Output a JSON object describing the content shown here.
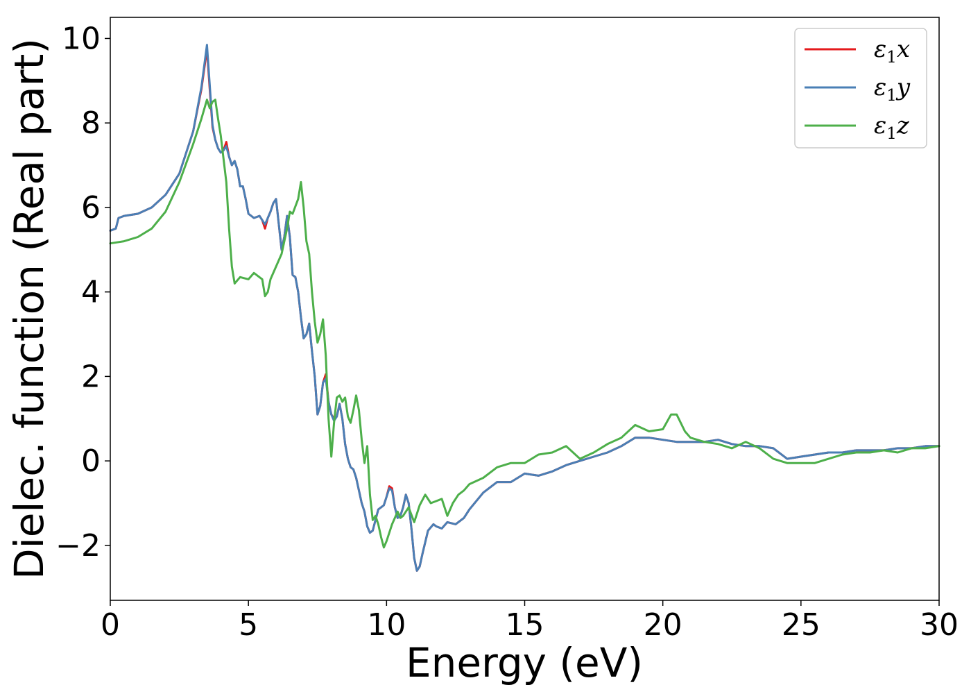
{
  "chart_data": {
    "type": "line",
    "title": "",
    "xlabel": "Energy (eV)",
    "ylabel": "Dielec. function (Real part)",
    "xlim": [
      0,
      30
    ],
    "ylim": [
      -3.3,
      10.5
    ],
    "xticks": [
      0,
      5,
      10,
      15,
      20,
      25,
      30
    ],
    "yticks": [
      -2,
      0,
      2,
      4,
      6,
      8,
      10
    ],
    "xtick_labels": [
      "0",
      "5",
      "10",
      "15",
      "20",
      "25",
      "30"
    ],
    "ytick_labels": [
      "−2",
      "0",
      "2",
      "4",
      "6",
      "8",
      "10"
    ],
    "grid": false,
    "legend_position": "top-right",
    "series": [
      {
        "name": "ε₁x",
        "legend_base": "ε",
        "legend_sub": "1",
        "legend_var": "x",
        "color": "#e41a1c",
        "x": [
          0,
          0.2,
          0.3,
          0.5,
          1.0,
          1.5,
          2.0,
          2.5,
          3.0,
          3.3,
          3.5,
          3.6,
          3.7,
          3.8,
          3.9,
          4.0,
          4.1,
          4.2,
          4.3,
          4.4,
          4.5,
          4.6,
          4.7,
          4.8,
          4.9,
          5.0,
          5.2,
          5.4,
          5.5,
          5.6,
          5.7,
          5.8,
          5.9,
          6.0,
          6.1,
          6.2,
          6.3,
          6.4,
          6.5,
          6.6,
          6.7,
          6.8,
          6.9,
          7.0,
          7.1,
          7.2,
          7.3,
          7.4,
          7.5,
          7.6,
          7.7,
          7.8,
          7.9,
          8.0,
          8.1,
          8.2,
          8.3,
          8.4,
          8.5,
          8.6,
          8.7,
          8.8,
          8.9,
          9.0,
          9.1,
          9.2,
          9.3,
          9.4,
          9.5,
          9.6,
          9.7,
          9.8,
          9.9,
          10.0,
          10.1,
          10.2,
          10.3,
          10.4,
          10.5,
          10.6,
          10.7,
          10.8,
          10.9,
          11.0,
          11.1,
          11.2,
          11.3,
          11.5,
          11.7,
          11.8,
          12.0,
          12.2,
          12.5,
          12.8,
          13.0,
          13.5,
          14.0,
          14.5,
          15.0,
          15.5,
          16.0,
          16.5,
          17.0,
          17.5,
          18.0,
          18.5,
          19.0,
          19.5,
          20.0,
          20.5,
          21.0,
          21.5,
          22.0,
          22.5,
          23.0,
          23.5,
          24.0,
          24.5,
          25.0,
          25.5,
          26.0,
          26.5,
          27.0,
          27.5,
          28.0,
          28.5,
          29.0,
          29.5,
          30.0
        ],
        "y": [
          5.45,
          5.5,
          5.75,
          5.8,
          5.85,
          6.0,
          6.3,
          6.8,
          7.8,
          8.8,
          9.75,
          8.8,
          7.9,
          7.6,
          7.4,
          7.3,
          7.35,
          7.55,
          7.2,
          7.0,
          7.1,
          6.9,
          6.5,
          6.5,
          6.2,
          5.85,
          5.75,
          5.8,
          5.7,
          5.5,
          5.75,
          5.9,
          6.1,
          6.2,
          5.6,
          5.0,
          5.3,
          5.8,
          5.3,
          4.4,
          4.35,
          4.0,
          3.4,
          2.9,
          3.0,
          3.25,
          2.6,
          2.0,
          1.1,
          1.3,
          1.85,
          2.05,
          1.4,
          1.1,
          1.0,
          1.05,
          1.35,
          1.0,
          0.4,
          0.05,
          -0.15,
          -0.2,
          -0.4,
          -0.7,
          -1.0,
          -1.2,
          -1.55,
          -1.7,
          -1.65,
          -1.4,
          -1.15,
          -1.1,
          -1.05,
          -0.85,
          -0.6,
          -0.65,
          -1.1,
          -1.35,
          -1.3,
          -1.1,
          -0.8,
          -1.0,
          -1.6,
          -2.3,
          -2.6,
          -2.5,
          -2.2,
          -1.65,
          -1.5,
          -1.55,
          -1.6,
          -1.45,
          -1.5,
          -1.35,
          -1.15,
          -0.75,
          -0.5,
          -0.5,
          -0.3,
          -0.35,
          -0.25,
          -0.1,
          0.0,
          0.1,
          0.2,
          0.35,
          0.55,
          0.55,
          0.5,
          0.45,
          0.45,
          0.45,
          0.5,
          0.4,
          0.35,
          0.35,
          0.3,
          0.05,
          0.1,
          0.15,
          0.2,
          0.2,
          0.25,
          0.25,
          0.25,
          0.3,
          0.3,
          0.35,
          0.35
        ]
      },
      {
        "name": "ε₁y",
        "legend_base": "ε",
        "legend_sub": "1",
        "legend_var": "y",
        "color": "#4a7fb5",
        "x": [
          0,
          0.2,
          0.3,
          0.5,
          1.0,
          1.5,
          2.0,
          2.5,
          3.0,
          3.3,
          3.5,
          3.6,
          3.7,
          3.8,
          3.9,
          4.0,
          4.1,
          4.2,
          4.3,
          4.4,
          4.5,
          4.6,
          4.7,
          4.8,
          4.9,
          5.0,
          5.2,
          5.4,
          5.5,
          5.6,
          5.7,
          5.8,
          5.9,
          6.0,
          6.1,
          6.2,
          6.3,
          6.4,
          6.5,
          6.6,
          6.7,
          6.8,
          6.9,
          7.0,
          7.1,
          7.2,
          7.3,
          7.4,
          7.5,
          7.6,
          7.7,
          7.8,
          7.9,
          8.0,
          8.1,
          8.2,
          8.3,
          8.4,
          8.5,
          8.6,
          8.7,
          8.8,
          8.9,
          9.0,
          9.1,
          9.2,
          9.3,
          9.4,
          9.5,
          9.6,
          9.7,
          9.8,
          9.9,
          10.0,
          10.1,
          10.2,
          10.3,
          10.4,
          10.5,
          10.6,
          10.7,
          10.8,
          10.9,
          11.0,
          11.1,
          11.2,
          11.3,
          11.5,
          11.7,
          11.8,
          12.0,
          12.2,
          12.5,
          12.8,
          13.0,
          13.5,
          14.0,
          14.5,
          15.0,
          15.5,
          16.0,
          16.5,
          17.0,
          17.5,
          18.0,
          18.5,
          19.0,
          19.5,
          20.0,
          20.5,
          21.0,
          21.5,
          22.0,
          22.5,
          23.0,
          23.5,
          24.0,
          24.5,
          25.0,
          25.5,
          26.0,
          26.5,
          27.0,
          27.5,
          28.0,
          28.5,
          29.0,
          29.5,
          30.0
        ],
        "y": [
          5.45,
          5.5,
          5.75,
          5.8,
          5.85,
          6.0,
          6.3,
          6.8,
          7.8,
          8.85,
          9.85,
          8.9,
          7.95,
          7.6,
          7.4,
          7.3,
          7.35,
          7.45,
          7.2,
          7.0,
          7.1,
          6.9,
          6.5,
          6.5,
          6.2,
          5.85,
          5.75,
          5.8,
          5.7,
          5.6,
          5.75,
          5.9,
          6.1,
          6.2,
          5.6,
          5.0,
          5.3,
          5.8,
          5.3,
          4.4,
          4.35,
          4.0,
          3.4,
          2.9,
          3.0,
          3.25,
          2.6,
          2.0,
          1.1,
          1.3,
          1.85,
          1.95,
          1.4,
          1.1,
          0.95,
          1.05,
          1.35,
          1.0,
          0.4,
          0.05,
          -0.15,
          -0.2,
          -0.4,
          -0.7,
          -1.0,
          -1.2,
          -1.55,
          -1.7,
          -1.65,
          -1.4,
          -1.15,
          -1.1,
          -1.05,
          -0.85,
          -0.65,
          -0.7,
          -1.1,
          -1.35,
          -1.3,
          -1.1,
          -0.8,
          -1.0,
          -1.6,
          -2.3,
          -2.6,
          -2.5,
          -2.2,
          -1.65,
          -1.5,
          -1.55,
          -1.6,
          -1.45,
          -1.5,
          -1.35,
          -1.15,
          -0.75,
          -0.5,
          -0.5,
          -0.3,
          -0.35,
          -0.25,
          -0.1,
          0.0,
          0.1,
          0.2,
          0.35,
          0.55,
          0.55,
          0.5,
          0.45,
          0.45,
          0.45,
          0.5,
          0.4,
          0.35,
          0.35,
          0.3,
          0.05,
          0.1,
          0.15,
          0.2,
          0.2,
          0.25,
          0.25,
          0.25,
          0.3,
          0.3,
          0.35,
          0.35
        ]
      },
      {
        "name": "ε₁z",
        "legend_base": "ε",
        "legend_sub": "1",
        "legend_var": "z",
        "color": "#4daf4a",
        "x": [
          0,
          0.5,
          1.0,
          1.5,
          2.0,
          2.5,
          3.0,
          3.3,
          3.5,
          3.6,
          3.7,
          3.8,
          3.9,
          4.0,
          4.2,
          4.3,
          4.4,
          4.5,
          4.7,
          5.0,
          5.2,
          5.5,
          5.6,
          5.7,
          5.8,
          6.0,
          6.2,
          6.4,
          6.5,
          6.6,
          6.8,
          6.9,
          7.0,
          7.1,
          7.2,
          7.3,
          7.4,
          7.5,
          7.6,
          7.7,
          7.8,
          7.9,
          8.0,
          8.1,
          8.2,
          8.3,
          8.4,
          8.5,
          8.6,
          8.7,
          8.8,
          8.9,
          9.0,
          9.1,
          9.2,
          9.3,
          9.4,
          9.5,
          9.6,
          9.7,
          9.8,
          9.9,
          10.0,
          10.2,
          10.4,
          10.5,
          10.6,
          10.8,
          11.0,
          11.2,
          11.4,
          11.6,
          11.8,
          12.0,
          12.2,
          12.4,
          12.6,
          12.8,
          13.0,
          13.5,
          14.0,
          14.5,
          15.0,
          15.5,
          16.0,
          16.5,
          17.0,
          17.5,
          18.0,
          18.5,
          19.0,
          19.5,
          20.0,
          20.3,
          20.5,
          20.8,
          21.0,
          21.5,
          22.0,
          22.5,
          23.0,
          23.5,
          24.0,
          24.5,
          25.0,
          25.5,
          26.0,
          26.5,
          27.0,
          27.5,
          28.0,
          28.5,
          29.0,
          29.5,
          30.0
        ],
        "y": [
          5.15,
          5.2,
          5.3,
          5.5,
          5.9,
          6.6,
          7.5,
          8.1,
          8.55,
          8.35,
          8.5,
          8.55,
          8.1,
          7.7,
          6.6,
          5.5,
          4.6,
          4.2,
          4.35,
          4.3,
          4.45,
          4.3,
          3.9,
          4.0,
          4.3,
          4.6,
          4.9,
          5.5,
          5.9,
          5.85,
          6.2,
          6.6,
          6.0,
          5.2,
          4.9,
          4.0,
          3.3,
          2.8,
          3.0,
          3.35,
          2.5,
          1.0,
          0.1,
          0.9,
          1.5,
          1.55,
          1.4,
          1.5,
          1.05,
          0.9,
          1.2,
          1.55,
          1.2,
          0.5,
          -0.05,
          0.35,
          -0.8,
          -1.4,
          -1.3,
          -1.5,
          -1.8,
          -2.05,
          -1.9,
          -1.5,
          -1.2,
          -1.35,
          -1.3,
          -1.1,
          -1.45,
          -1.05,
          -0.8,
          -1.0,
          -0.95,
          -0.9,
          -1.3,
          -1.0,
          -0.8,
          -0.7,
          -0.55,
          -0.4,
          -0.15,
          -0.05,
          -0.05,
          0.15,
          0.2,
          0.35,
          0.05,
          0.2,
          0.4,
          0.55,
          0.85,
          0.7,
          0.75,
          1.1,
          1.1,
          0.7,
          0.55,
          0.45,
          0.4,
          0.3,
          0.45,
          0.3,
          0.05,
          -0.05,
          -0.05,
          -0.05,
          0.05,
          0.15,
          0.2,
          0.2,
          0.25,
          0.2,
          0.3,
          0.3,
          0.35
        ]
      }
    ]
  }
}
